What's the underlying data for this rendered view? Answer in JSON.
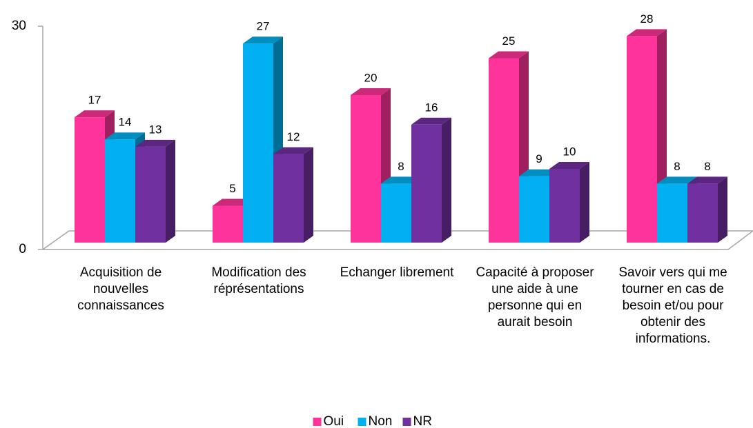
{
  "chart_data": {
    "type": "bar3d",
    "categories": [
      "Acquisition de nouvelles connaissances",
      "Modification des réprésentations",
      "Echanger librement",
      "Capacité à proposer une aide à une personne qui en aurait besoin",
      "Savoir vers qui me tourner en cas de besoin et/ou pour obtenir des informations."
    ],
    "series": [
      {
        "name": "Oui",
        "color": "#ff3399",
        "values": [
          17,
          5,
          20,
          25,
          28
        ]
      },
      {
        "name": "Non",
        "color": "#00b0f0",
        "values": [
          14,
          27,
          8,
          9,
          8
        ]
      },
      {
        "name": "NR",
        "color": "#7030a0",
        "values": [
          13,
          12,
          16,
          10,
          8
        ]
      }
    ],
    "ylim": [
      0,
      30
    ],
    "yticks": [
      0,
      30
    ],
    "legend": "bottom"
  }
}
